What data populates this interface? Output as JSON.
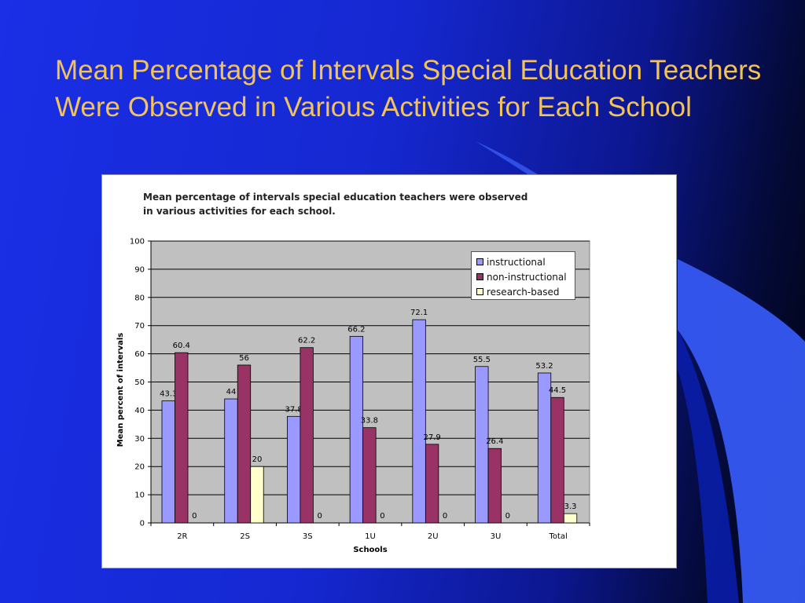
{
  "slide": {
    "title": "Mean Percentage of Intervals Special Education Teachers Were Observed in Various Activities for Each School"
  },
  "colors": {
    "background": "#1a2fe6",
    "title": "#f2c35a",
    "plot_area": "#c0c0c0",
    "instructional": "#9999ff",
    "non_instructional": "#993366",
    "research_based": "#ffffcc"
  },
  "chart_data": {
    "type": "bar",
    "title": "Mean percentage of intervals special education teachers were observed\nin various activities for each school.",
    "xlabel": "Schools",
    "ylabel": "Mean percent of intervals",
    "ylim": [
      0,
      100
    ],
    "yticks": [
      0,
      10,
      20,
      30,
      40,
      50,
      60,
      70,
      80,
      90,
      100
    ],
    "grid": true,
    "legend_position": "top-right",
    "categories": [
      "2R",
      "2S",
      "3S",
      "1U",
      "2U",
      "3U",
      "Total"
    ],
    "series": [
      {
        "name": "instructional",
        "color": "#9999ff",
        "values": [
          43.3,
          44,
          37.8,
          66.2,
          72.1,
          55.5,
          53.2
        ]
      },
      {
        "name": "non-instructional",
        "color": "#993366",
        "values": [
          60.4,
          56,
          62.2,
          33.8,
          27.9,
          26.4,
          44.5
        ]
      },
      {
        "name": "research-based",
        "color": "#ffffcc",
        "values": [
          0,
          20,
          0,
          0,
          0,
          0,
          3.3
        ]
      }
    ]
  }
}
